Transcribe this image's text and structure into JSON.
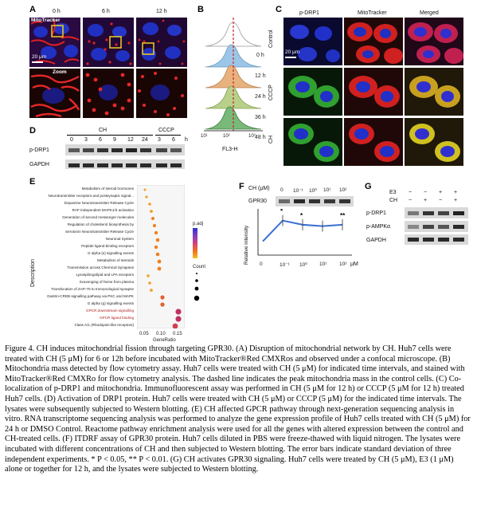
{
  "panels": {
    "A": {
      "label": "A",
      "times": [
        "0 h",
        "6 h",
        "12 h"
      ],
      "stain": "MitoTracker",
      "zoom": "Zoom",
      "scale": "20 μm"
    },
    "B": {
      "label": "B",
      "times": [
        "0 h",
        "12 h",
        "24 h",
        "36 h",
        "48 h"
      ],
      "xlabel": "FL3-H",
      "xticks": [
        "10¹",
        "10²",
        "10³"
      ]
    },
    "C": {
      "label": "C",
      "columns": [
        "p-DRP1",
        "MitoTracker",
        "Merged"
      ],
      "rows": [
        "Control",
        "CCCP",
        "CH"
      ],
      "scale": "20 μm"
    },
    "D": {
      "label": "D",
      "groups": [
        "CH",
        "CCCP"
      ],
      "lanes": [
        "0",
        "3",
        "6",
        "9",
        "12",
        "24",
        "3",
        "6"
      ],
      "rows": [
        "p-DRP1",
        "GAPDH"
      ],
      "unit": "h"
    },
    "E": {
      "label": "E",
      "ylabel": "Description",
      "xlabel": "GeneRatio",
      "xticks": [
        "0.05",
        "0.10",
        "0.15"
      ],
      "legend_p": "p.adj",
      "legend_count": "Count",
      "terms": [
        "Metabolism of steroid hormones",
        "Neurotransmitter receptors and postsynaptic signal...",
        "Dopamine Neurotransmitter Release Cycle",
        "RAF-independent MAPK1/3 activation",
        "Generation of second messenger molecules",
        "Regulation of cholesterol biosynthesis by",
        "Serotonin Neurotransmitter Release Cycle",
        "Neuronal System",
        "Peptide ligand-binding receptors",
        "G alpha (s) signalling events",
        "Metabolism of steroids",
        "Transmission across Chemical Synapses",
        "Lysosphingolipid and LPA receptors",
        "Scavenging of heme from plasma",
        "Translocation of ZAP-70 to Immunological synapse",
        "Gastrin-CREB signalling pathway via PKC and MAPK",
        "G alpha (q) signalling events",
        "GPCR downstream signalling",
        "GPCR ligand binding",
        "Class A/1 (Rhodopsin-like receptors)"
      ]
    },
    "F": {
      "label": "F",
      "treatment": "CH (μM)",
      "conc": [
        "0",
        "10⁻¹",
        "10⁰",
        "10¹",
        "10²"
      ],
      "row": "GPR30",
      "ylabel": "Relative intensity",
      "xticks": [
        "0",
        "10⁻¹",
        "10⁰",
        "10¹",
        "10²"
      ],
      "xunit": "μM",
      "stars": [
        "*",
        "*",
        "**"
      ]
    },
    "G": {
      "label": "G",
      "treatments": [
        "E3",
        "CH"
      ],
      "signs_e3": [
        "−",
        "−",
        "+",
        "+"
      ],
      "signs_ch": [
        "−",
        "+",
        "−",
        "+"
      ],
      "rows": [
        "p-DRP1",
        "p-AMPKα",
        "GAPDH"
      ]
    }
  },
  "chart_data": [
    {
      "type": "scatter",
      "title": "",
      "xlabel": "GeneRatio",
      "ylabel": "Description",
      "x": [
        0.055,
        0.06,
        0.07,
        0.075,
        0.08,
        0.085,
        0.09,
        0.095,
        0.09,
        0.095,
        0.1,
        0.1,
        0.065,
        0.07,
        0.075,
        0.11,
        0.11,
        0.16,
        0.16,
        0.15
      ],
      "xlim": [
        0.03,
        0.18
      ]
    },
    {
      "type": "line",
      "xlabel": "",
      "ylabel": "Relative intensity",
      "categories": [
        "0",
        "10⁻¹",
        "10⁰",
        "10¹",
        "10²"
      ],
      "series": [
        {
          "values": [
            1.0,
            2.5,
            2.2,
            2.1,
            2.2
          ]
        }
      ]
    }
  ],
  "caption": "Figure 4. CH induces mitochondrial fission through targeting GPR30. (A) Disruption of mitochondrial network by CH. Huh7 cells were treated with CH (5 μM) for 6 or 12h before incubated with MitoTracker®Red CMXRos and observed under a confocal microscope. (B) Mitochondria mass detected by flow cytometry assay. Huh7 cells were treated with CH (5 μM) for indicated time intervals, and stained with MitoTracker®Red CMXRo for flow cytometry analysis. The dashed line indicates the peak mitochondria mass in the control cells. (C) Co-localization of p-DRP1 and mitochondria. Immunofluorescent assay was performed in CH (5 μM for 12 h) or CCCP (5 μM for 12 h) treated Huh7 cells. (D) Activation of DRP1 protein. Huh7 cells were treated with CH (5 μM) or CCCP (5 μM) for the indicated time intervals. The lysates were subsequently subjected to Western blotting. (E) CH affected GPCR pathway through next-generation sequencing analysis in vitro. RNA transcriptome sequencing analysis was performed to analyze the gene expression profile of Huh7 cells treated with CH (5 μM) for 24 h or DMSO Control. Reactome pathway enrichment analysis were used for all the genes with altered expression between the control and CH-treated cells. (F) ITDRF assay of GPR30 protein. Huh7 cells diluted in PBS were freeze-thawed with liquid nitrogen. The lysates were incubated with different concentrations of CH and then subjected to Western blotting. The error bars indicate standard deviation of three independent experiments. * P < 0.05, ** P < 0.01. (G) CH activates GPR30 signaling. Huh7 cells were treated by CH (5 μM), E3 (1 μM) alone or together for 12 h, and the lysates were subjected to Western blotting."
}
